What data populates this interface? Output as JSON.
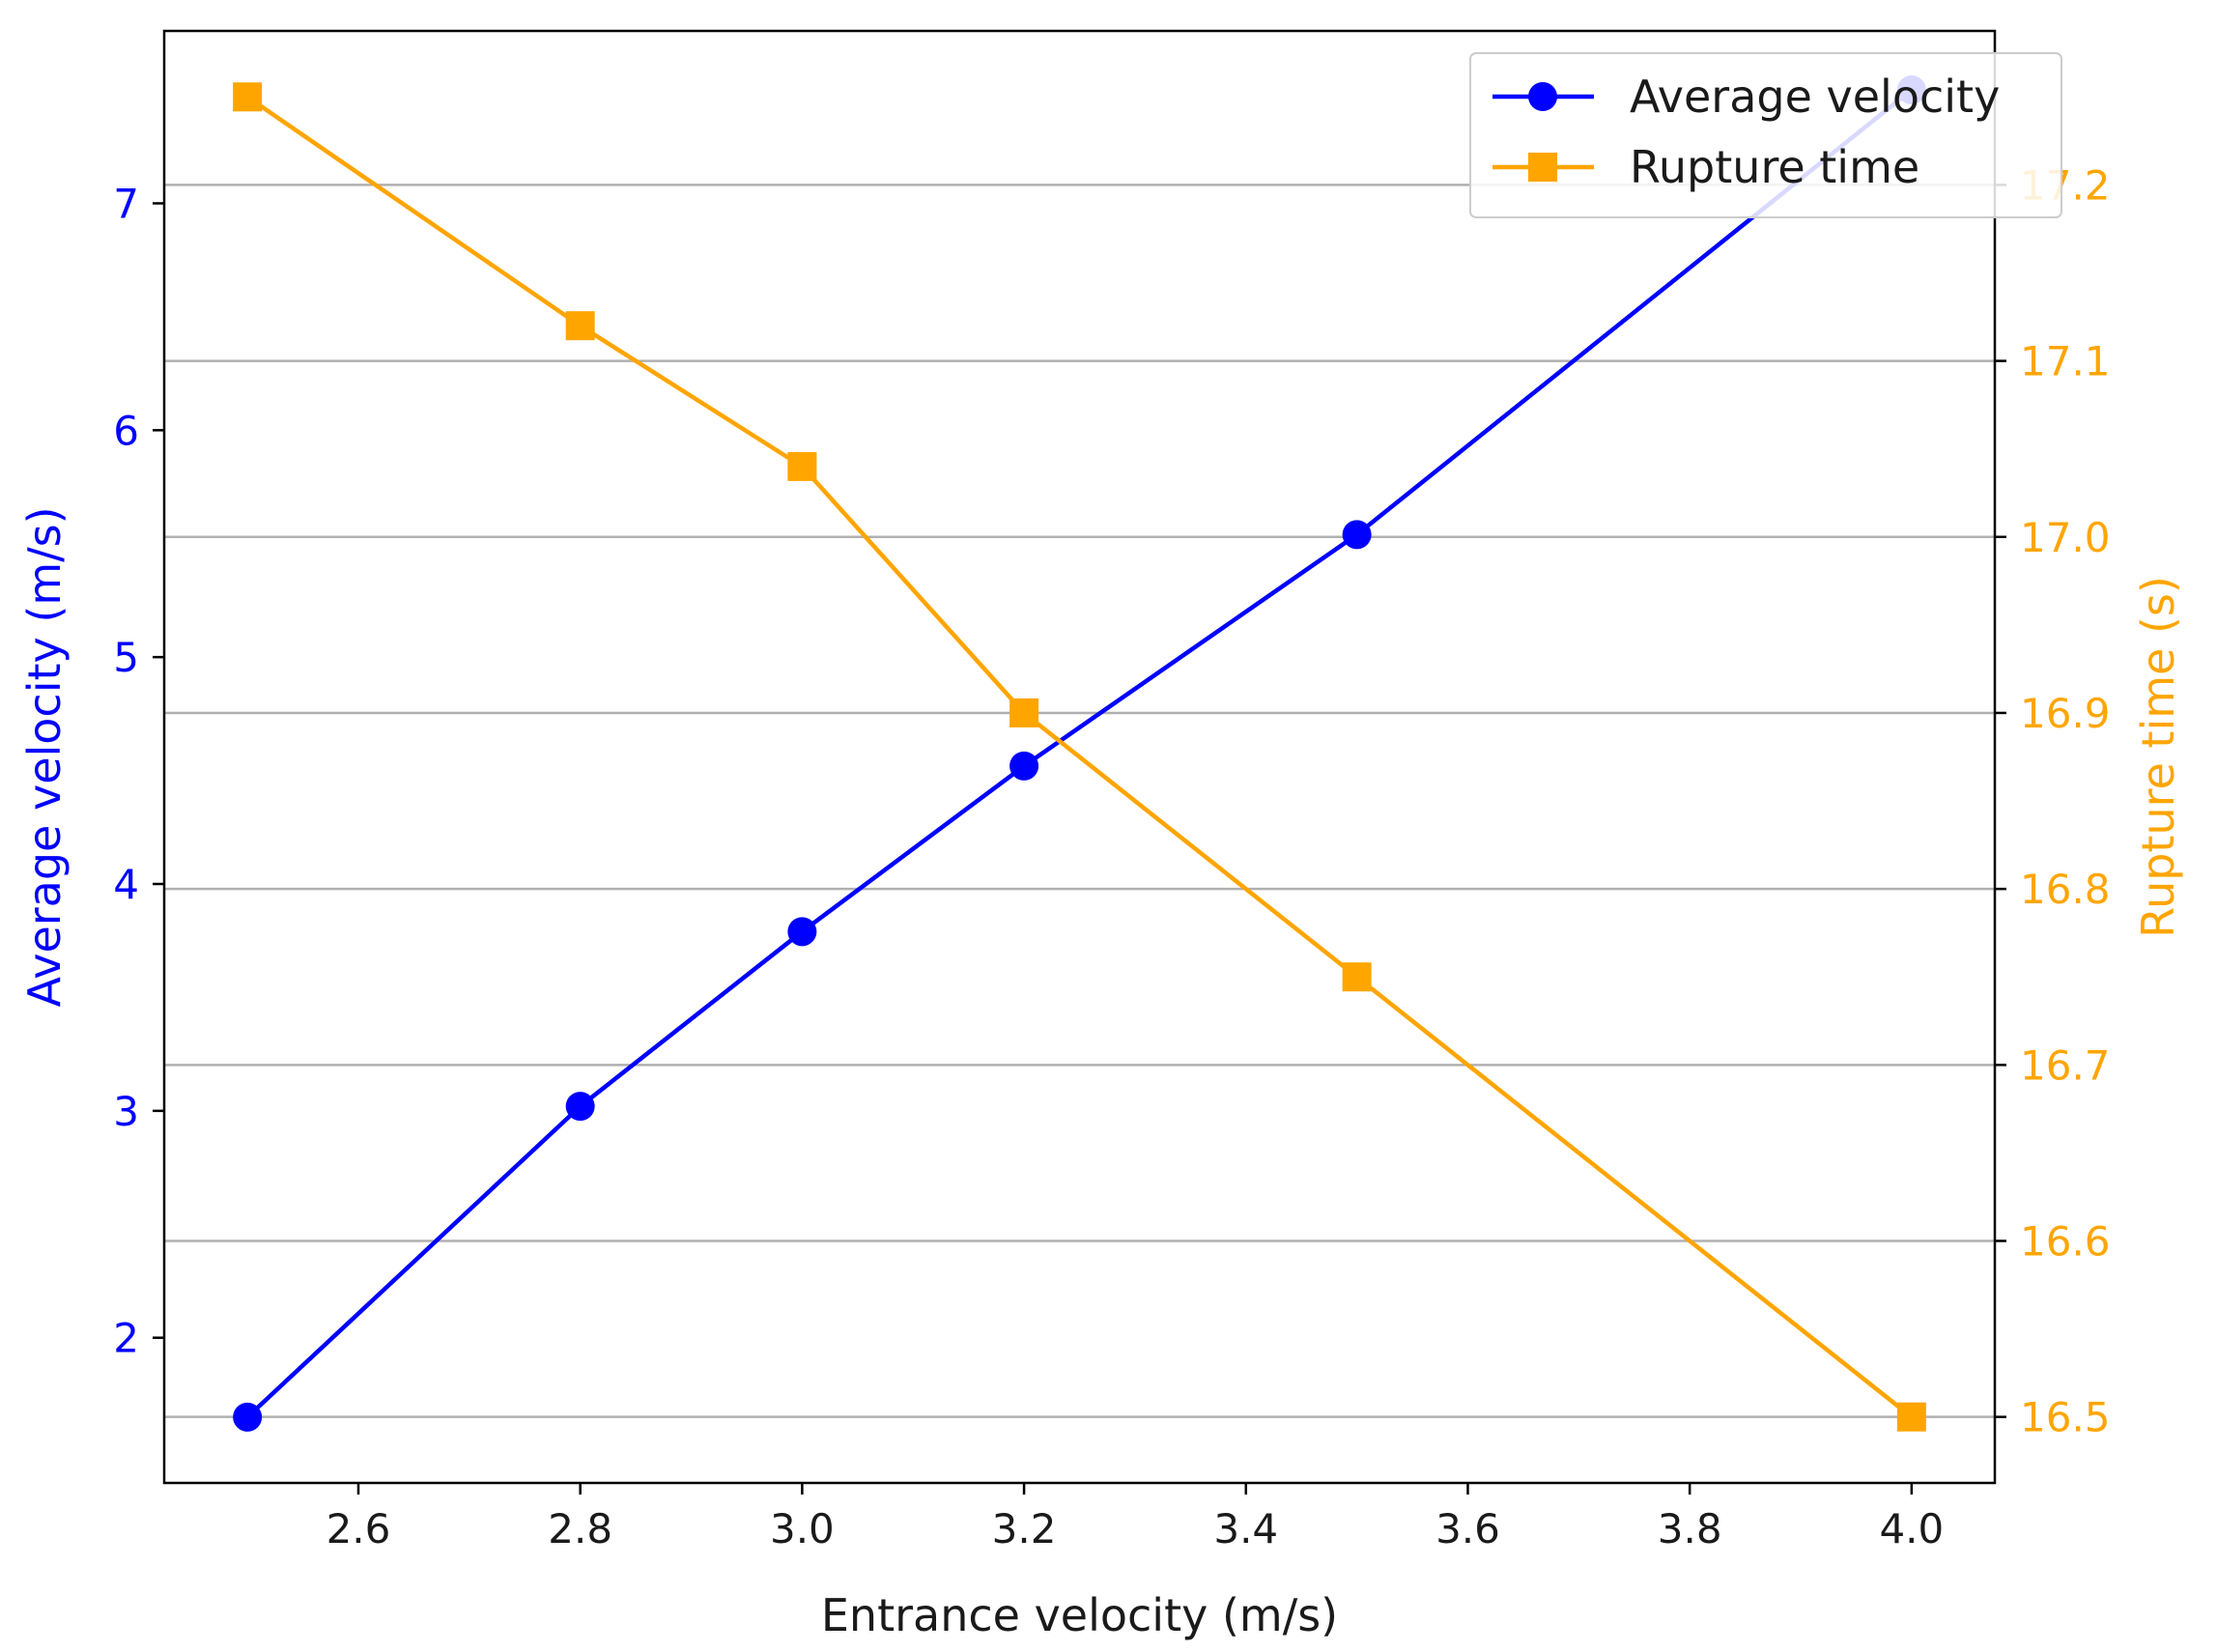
{
  "chart_data": {
    "type": "line",
    "title": "",
    "xlabel": "Entrance velocity (m/s)",
    "ylabel_left": "Average velocity (m/s)",
    "ylabel_right": "Rupture time (s)",
    "x": [
      2.5,
      2.8,
      3.0,
      3.2,
      3.5,
      4.0
    ],
    "xlim": [
      2.425,
      4.075
    ],
    "xticks": [
      2.6,
      2.8,
      3.0,
      3.2,
      3.4,
      3.6,
      3.8,
      4.0
    ],
    "xtick_labels": [
      "2.6",
      "2.8",
      "3.0",
      "3.2",
      "3.4",
      "3.6",
      "3.8",
      "4.0"
    ],
    "ylim_left": [
      1.36,
      7.76
    ],
    "yticks_left": [
      2,
      3,
      4,
      5,
      6,
      7
    ],
    "ytick_labels_left": [
      "2",
      "3",
      "4",
      "5",
      "6",
      "7"
    ],
    "ylim_right": [
      16.4625,
      17.2875
    ],
    "yticks_right": [
      16.5,
      16.6,
      16.7,
      16.8,
      16.9,
      17.0,
      17.1,
      17.2
    ],
    "ytick_labels_right": [
      "16.5",
      "16.6",
      "16.7",
      "16.8",
      "16.9",
      "17.0",
      "17.1",
      "17.2"
    ],
    "grid": "horizontal lines at right-axis ticks",
    "legend_position": "top-right",
    "series": [
      {
        "name": "Average velocity",
        "axis": "left",
        "color": "#0000ff",
        "marker": "circle",
        "values": [
          1.65,
          3.02,
          3.79,
          4.52,
          5.54,
          7.5
        ]
      },
      {
        "name": "Rupture time",
        "axis": "right",
        "color": "#ffa500",
        "marker": "square",
        "values": [
          17.25,
          17.12,
          17.04,
          16.9,
          16.75,
          16.5
        ]
      }
    ],
    "colors": {
      "left_axis": "#0000ff",
      "right_axis": "#ffa500",
      "grid": "#b0b0b0",
      "frame": "#000000"
    }
  }
}
